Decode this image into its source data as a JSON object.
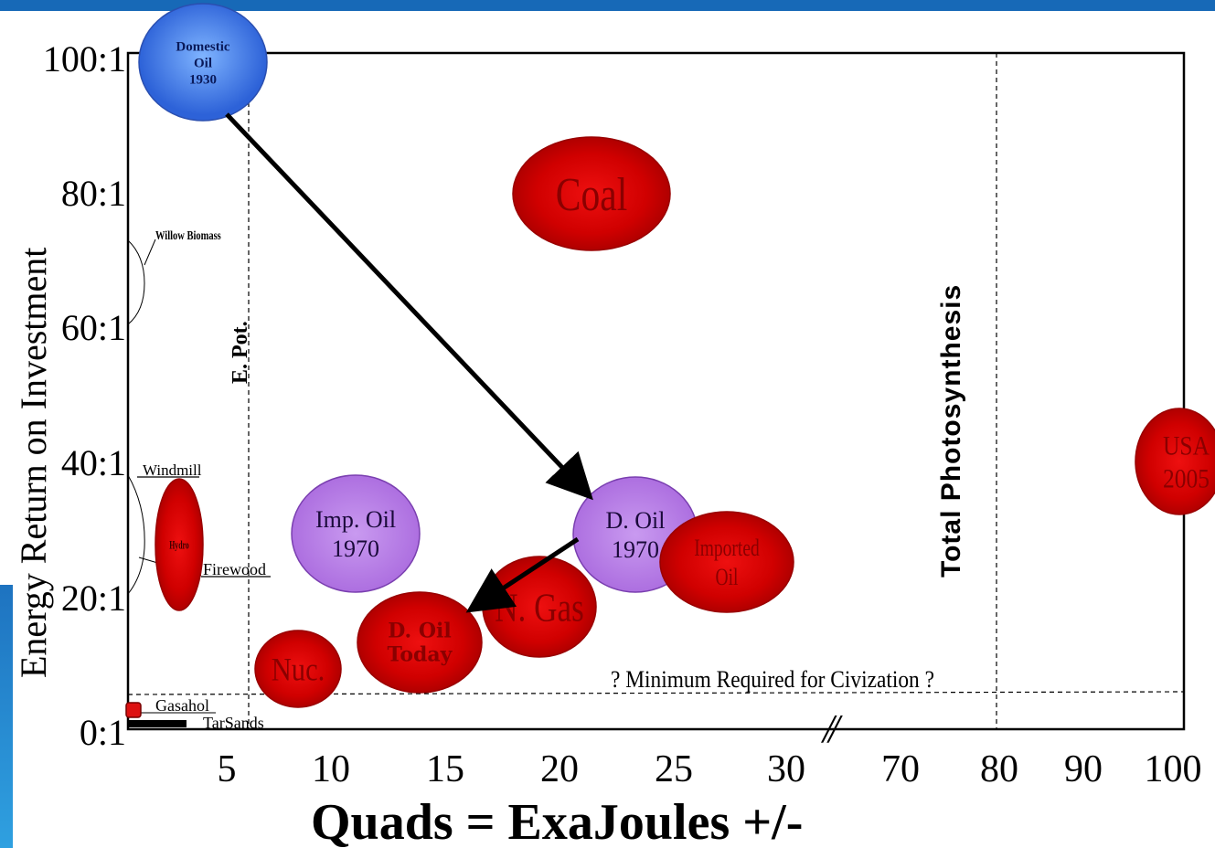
{
  "chart_data": {
    "type": "scatter",
    "title": "",
    "xlabel": "Quads = ExaJoules +/-",
    "ylabel": "Energy Return on Investment",
    "x_ticks_left": [
      "5",
      "10",
      "15",
      "20",
      "25",
      "30"
    ],
    "x_ticks_right": [
      "70",
      "80",
      "90",
      "100"
    ],
    "y_ticks": [
      "0:1",
      "20:1",
      "40:1",
      "60:1",
      "80:1",
      "100:1"
    ],
    "axis_break": "//",
    "ylim": [
      0,
      100
    ],
    "grid": false,
    "points": [
      {
        "label": "Domestic Oil 1930",
        "lines": [
          "Domestic",
          "Oil",
          "1930"
        ],
        "x": 3,
        "y": 100,
        "color": "#3a78e0"
      },
      {
        "label": "Coal",
        "lines": [
          "Coal"
        ],
        "x": 21,
        "y": 79,
        "color": "#d40000"
      },
      {
        "label": "D. Oil 1970",
        "lines": [
          "D. Oil",
          "1970"
        ],
        "x": 23,
        "y": 29,
        "color": "#b87be0"
      },
      {
        "label": "Imp. Oil 1970",
        "lines": [
          "Imp. Oil",
          "1970"
        ],
        "x": 11,
        "y": 29,
        "color": "#b87be0"
      },
      {
        "label": "Imported Oil",
        "lines": [
          "Imported",
          "Oil"
        ],
        "x": 27,
        "y": 25,
        "color": "#d40000"
      },
      {
        "label": "N. Gas",
        "lines": [
          "N. Gas"
        ],
        "x": 19,
        "y": 18,
        "color": "#d40000"
      },
      {
        "label": "D. Oil Today",
        "lines": [
          "D. Oil",
          "Today"
        ],
        "x": 14.5,
        "y": 13,
        "color": "#d40000"
      },
      {
        "label": "Nuc.",
        "lines": [
          "Nuc."
        ],
        "x": 8,
        "y": 9,
        "color": "#d40000"
      },
      {
        "label": "Hydro",
        "lines": [
          "Hydro"
        ],
        "x": 2.5,
        "y": 27,
        "color": "#d40000"
      },
      {
        "label": "USA 2005",
        "lines": [
          "USA",
          "2005"
        ],
        "x": 100,
        "y": 40,
        "color": "#d40000"
      },
      {
        "label": "Gasohol",
        "lines": [
          ""
        ],
        "x": 0.3,
        "y": 3,
        "color": "#d40000"
      }
    ],
    "side_labels": {
      "willow": "Willow Biomass",
      "windmill": "Windmill",
      "firewood": "Firewood",
      "gasohol": "Gasahol",
      "tarsands": "TarSands"
    },
    "reference_lines": {
      "e_pot": "E. Pot.",
      "photosynthesis": "Total Photosynthesis",
      "minimum": "? Minimum Required for Civization ?"
    },
    "arrows": [
      {
        "from": "Domestic Oil 1930",
        "to": "D. Oil 1970"
      },
      {
        "from": "D. Oil 1970",
        "to": "D. Oil Today"
      }
    ]
  }
}
